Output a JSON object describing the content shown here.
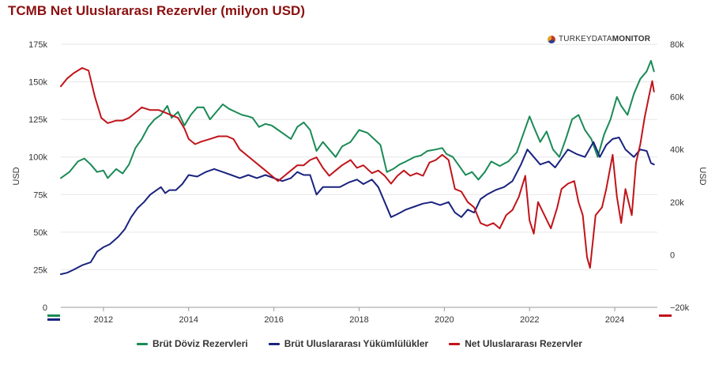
{
  "chart_data": {
    "type": "line",
    "title": "TCMB Net Uluslararası Rezervler (milyon USD)",
    "watermark": {
      "prefix": "TURKEYDATA",
      "suffix": "MONITOR"
    },
    "xlabel": "",
    "ylabel_left": "USD",
    "ylabel_right": "USD",
    "x_ticks": [
      "2012",
      "2014",
      "2016",
      "2018",
      "2020",
      "2022",
      "2024"
    ],
    "x_range": [
      2011.0,
      2025.0
    ],
    "y_left": {
      "min": 0,
      "max": 175000,
      "ticks": [
        "0",
        "25k",
        "50k",
        "75k",
        "100k",
        "125k",
        "150k",
        "175k"
      ]
    },
    "y_right": {
      "min": -20000,
      "max": 80000,
      "ticks": [
        "−20k",
        "0",
        "20k",
        "40k",
        "60k",
        "80k"
      ]
    },
    "grid": true,
    "legend_position": "bottom",
    "series": [
      {
        "name": "Brüt Döviz Rezervleri",
        "axis": "left",
        "color": "#1a8a56",
        "points": [
          [
            2011.0,
            86000
          ],
          [
            2011.2,
            90000
          ],
          [
            2011.4,
            97000
          ],
          [
            2011.55,
            99000
          ],
          [
            2011.7,
            95000
          ],
          [
            2011.85,
            90000
          ],
          [
            2012.0,
            91000
          ],
          [
            2012.1,
            86000
          ],
          [
            2012.3,
            92000
          ],
          [
            2012.45,
            89000
          ],
          [
            2012.6,
            95000
          ],
          [
            2012.75,
            106000
          ],
          [
            2012.9,
            112000
          ],
          [
            2013.05,
            120000
          ],
          [
            2013.2,
            125000
          ],
          [
            2013.35,
            128000
          ],
          [
            2013.5,
            134000
          ],
          [
            2013.6,
            126000
          ],
          [
            2013.75,
            130000
          ],
          [
            2013.9,
            121000
          ],
          [
            2014.05,
            128000
          ],
          [
            2014.2,
            133000
          ],
          [
            2014.35,
            133000
          ],
          [
            2014.5,
            125000
          ],
          [
            2014.65,
            130000
          ],
          [
            2014.8,
            135000
          ],
          [
            2014.95,
            132000
          ],
          [
            2015.1,
            130000
          ],
          [
            2015.25,
            128000
          ],
          [
            2015.4,
            127000
          ],
          [
            2015.5,
            126000
          ],
          [
            2015.65,
            120000
          ],
          [
            2015.8,
            122000
          ],
          [
            2015.95,
            121000
          ],
          [
            2016.1,
            118000
          ],
          [
            2016.25,
            115000
          ],
          [
            2016.4,
            112000
          ],
          [
            2016.55,
            120000
          ],
          [
            2016.7,
            123000
          ],
          [
            2016.85,
            118000
          ],
          [
            2017.0,
            104000
          ],
          [
            2017.15,
            110000
          ],
          [
            2017.3,
            105000
          ],
          [
            2017.45,
            100000
          ],
          [
            2017.6,
            107000
          ],
          [
            2017.8,
            110000
          ],
          [
            2018.0,
            118000
          ],
          [
            2018.2,
            116000
          ],
          [
            2018.35,
            112000
          ],
          [
            2018.5,
            108000
          ],
          [
            2018.65,
            90000
          ],
          [
            2018.8,
            92000
          ],
          [
            2018.95,
            95000
          ],
          [
            2019.1,
            97000
          ],
          [
            2019.3,
            100000
          ],
          [
            2019.45,
            101000
          ],
          [
            2019.6,
            104000
          ],
          [
            2019.8,
            105000
          ],
          [
            2019.95,
            106000
          ],
          [
            2020.05,
            102000
          ],
          [
            2020.2,
            100000
          ],
          [
            2020.35,
            94000
          ],
          [
            2020.5,
            88000
          ],
          [
            2020.65,
            90000
          ],
          [
            2020.8,
            85000
          ],
          [
            2020.95,
            90000
          ],
          [
            2021.1,
            97000
          ],
          [
            2021.3,
            94000
          ],
          [
            2021.5,
            97000
          ],
          [
            2021.7,
            103000
          ],
          [
            2021.85,
            115000
          ],
          [
            2022.0,
            127000
          ],
          [
            2022.1,
            120000
          ],
          [
            2022.25,
            110000
          ],
          [
            2022.4,
            117000
          ],
          [
            2022.55,
            105000
          ],
          [
            2022.7,
            100000
          ],
          [
            2022.85,
            112000
          ],
          [
            2023.0,
            125000
          ],
          [
            2023.15,
            128000
          ],
          [
            2023.3,
            118000
          ],
          [
            2023.45,
            112000
          ],
          [
            2023.6,
            100000
          ],
          [
            2023.75,
            115000
          ],
          [
            2023.9,
            125000
          ],
          [
            2024.05,
            140000
          ],
          [
            2024.15,
            134000
          ],
          [
            2024.3,
            128000
          ],
          [
            2024.45,
            142000
          ],
          [
            2024.6,
            152000
          ],
          [
            2024.75,
            157000
          ],
          [
            2024.85,
            164000
          ],
          [
            2024.92,
            157000
          ]
        ]
      },
      {
        "name": "Brüt Uluslararası Yükümlülükler",
        "axis": "left",
        "color": "#1a237e",
        "points": [
          [
            2011.0,
            22000
          ],
          [
            2011.15,
            23000
          ],
          [
            2011.3,
            25000
          ],
          [
            2011.5,
            28000
          ],
          [
            2011.7,
            30000
          ],
          [
            2011.85,
            37000
          ],
          [
            2012.0,
            40000
          ],
          [
            2012.15,
            42000
          ],
          [
            2012.35,
            47000
          ],
          [
            2012.5,
            52000
          ],
          [
            2012.65,
            60000
          ],
          [
            2012.8,
            66000
          ],
          [
            2012.95,
            70000
          ],
          [
            2013.1,
            75000
          ],
          [
            2013.25,
            78000
          ],
          [
            2013.35,
            80000
          ],
          [
            2013.45,
            76000
          ],
          [
            2013.55,
            78000
          ],
          [
            2013.7,
            78000
          ],
          [
            2013.85,
            82000
          ],
          [
            2014.0,
            88000
          ],
          [
            2014.2,
            87000
          ],
          [
            2014.4,
            90000
          ],
          [
            2014.6,
            92000
          ],
          [
            2014.8,
            90000
          ],
          [
            2015.0,
            88000
          ],
          [
            2015.2,
            86000
          ],
          [
            2015.4,
            88000
          ],
          [
            2015.6,
            86000
          ],
          [
            2015.8,
            88000
          ],
          [
            2016.0,
            86000
          ],
          [
            2016.2,
            84000
          ],
          [
            2016.4,
            86000
          ],
          [
            2016.55,
            90000
          ],
          [
            2016.7,
            88000
          ],
          [
            2016.85,
            88000
          ],
          [
            2017.0,
            75000
          ],
          [
            2017.15,
            80000
          ],
          [
            2017.35,
            80000
          ],
          [
            2017.55,
            80000
          ],
          [
            2017.75,
            83000
          ],
          [
            2017.95,
            85000
          ],
          [
            2018.1,
            82000
          ],
          [
            2018.3,
            85000
          ],
          [
            2018.45,
            80000
          ],
          [
            2018.6,
            70000
          ],
          [
            2018.75,
            60000
          ],
          [
            2018.9,
            62000
          ],
          [
            2019.1,
            65000
          ],
          [
            2019.3,
            67000
          ],
          [
            2019.5,
            69000
          ],
          [
            2019.7,
            70000
          ],
          [
            2019.9,
            68000
          ],
          [
            2020.1,
            70000
          ],
          [
            2020.25,
            63000
          ],
          [
            2020.4,
            60000
          ],
          [
            2020.55,
            65000
          ],
          [
            2020.7,
            63000
          ],
          [
            2020.85,
            72000
          ],
          [
            2021.0,
            75000
          ],
          [
            2021.2,
            78000
          ],
          [
            2021.4,
            80000
          ],
          [
            2021.6,
            84000
          ],
          [
            2021.8,
            95000
          ],
          [
            2021.95,
            105000
          ],
          [
            2022.1,
            100000
          ],
          [
            2022.25,
            95000
          ],
          [
            2022.45,
            97000
          ],
          [
            2022.6,
            93000
          ],
          [
            2022.75,
            99000
          ],
          [
            2022.9,
            105000
          ],
          [
            2023.1,
            102000
          ],
          [
            2023.3,
            100000
          ],
          [
            2023.5,
            110000
          ],
          [
            2023.65,
            100000
          ],
          [
            2023.8,
            108000
          ],
          [
            2023.95,
            112000
          ],
          [
            2024.1,
            113000
          ],
          [
            2024.25,
            105000
          ],
          [
            2024.45,
            100000
          ],
          [
            2024.6,
            105000
          ],
          [
            2024.75,
            104000
          ],
          [
            2024.85,
            96000
          ],
          [
            2024.92,
            95000
          ]
        ]
      },
      {
        "name": "Net Uluslararası Rezervler",
        "axis": "right",
        "color": "#c0141a",
        "points": [
          [
            2011.0,
            64000
          ],
          [
            2011.15,
            67000
          ],
          [
            2011.3,
            69000
          ],
          [
            2011.5,
            71000
          ],
          [
            2011.65,
            70000
          ],
          [
            2011.8,
            60000
          ],
          [
            2011.95,
            52000
          ],
          [
            2012.1,
            50000
          ],
          [
            2012.3,
            51000
          ],
          [
            2012.45,
            51000
          ],
          [
            2012.6,
            52000
          ],
          [
            2012.75,
            54000
          ],
          [
            2012.9,
            56000
          ],
          [
            2013.1,
            55000
          ],
          [
            2013.3,
            55000
          ],
          [
            2013.45,
            54000
          ],
          [
            2013.6,
            53000
          ],
          [
            2013.75,
            52000
          ],
          [
            2013.9,
            48000
          ],
          [
            2014.0,
            44000
          ],
          [
            2014.15,
            42000
          ],
          [
            2014.3,
            43000
          ],
          [
            2014.5,
            44000
          ],
          [
            2014.7,
            45000
          ],
          [
            2014.9,
            45000
          ],
          [
            2015.05,
            44000
          ],
          [
            2015.2,
            40000
          ],
          [
            2015.35,
            38000
          ],
          [
            2015.5,
            36000
          ],
          [
            2015.65,
            34000
          ],
          [
            2015.8,
            32000
          ],
          [
            2015.95,
            30000
          ],
          [
            2016.1,
            28000
          ],
          [
            2016.25,
            30000
          ],
          [
            2016.4,
            32000
          ],
          [
            2016.55,
            34000
          ],
          [
            2016.7,
            34000
          ],
          [
            2016.85,
            36000
          ],
          [
            2017.0,
            37000
          ],
          [
            2017.15,
            33000
          ],
          [
            2017.3,
            30000
          ],
          [
            2017.45,
            32000
          ],
          [
            2017.6,
            34000
          ],
          [
            2017.8,
            36000
          ],
          [
            2017.95,
            33000
          ],
          [
            2018.1,
            34000
          ],
          [
            2018.3,
            31000
          ],
          [
            2018.45,
            32000
          ],
          [
            2018.6,
            30000
          ],
          [
            2018.75,
            27000
          ],
          [
            2018.9,
            30000
          ],
          [
            2019.05,
            32000
          ],
          [
            2019.2,
            30000
          ],
          [
            2019.35,
            31000
          ],
          [
            2019.5,
            30000
          ],
          [
            2019.65,
            35000
          ],
          [
            2019.8,
            36000
          ],
          [
            2019.95,
            38000
          ],
          [
            2020.1,
            36000
          ],
          [
            2020.25,
            25000
          ],
          [
            2020.4,
            24000
          ],
          [
            2020.55,
            20000
          ],
          [
            2020.7,
            18000
          ],
          [
            2020.85,
            12000
          ],
          [
            2021.0,
            11000
          ],
          [
            2021.15,
            12000
          ],
          [
            2021.3,
            10000
          ],
          [
            2021.45,
            15000
          ],
          [
            2021.6,
            17000
          ],
          [
            2021.75,
            22000
          ],
          [
            2021.9,
            30000
          ],
          [
            2022.0,
            13000
          ],
          [
            2022.1,
            8000
          ],
          [
            2022.2,
            20000
          ],
          [
            2022.35,
            15000
          ],
          [
            2022.5,
            10000
          ],
          [
            2022.65,
            18000
          ],
          [
            2022.75,
            25000
          ],
          [
            2022.9,
            27000
          ],
          [
            2023.05,
            28000
          ],
          [
            2023.15,
            20000
          ],
          [
            2023.25,
            15000
          ],
          [
            2023.35,
            -1000
          ],
          [
            2023.42,
            -5000
          ],
          [
            2023.55,
            15000
          ],
          [
            2023.7,
            18000
          ],
          [
            2023.8,
            25000
          ],
          [
            2023.95,
            38000
          ],
          [
            2024.05,
            22000
          ],
          [
            2024.15,
            12000
          ],
          [
            2024.25,
            25000
          ],
          [
            2024.4,
            15000
          ],
          [
            2024.5,
            35000
          ],
          [
            2024.6,
            42000
          ],
          [
            2024.7,
            52000
          ],
          [
            2024.8,
            60000
          ],
          [
            2024.88,
            66000
          ],
          [
            2024.92,
            62000
          ]
        ]
      }
    ]
  }
}
